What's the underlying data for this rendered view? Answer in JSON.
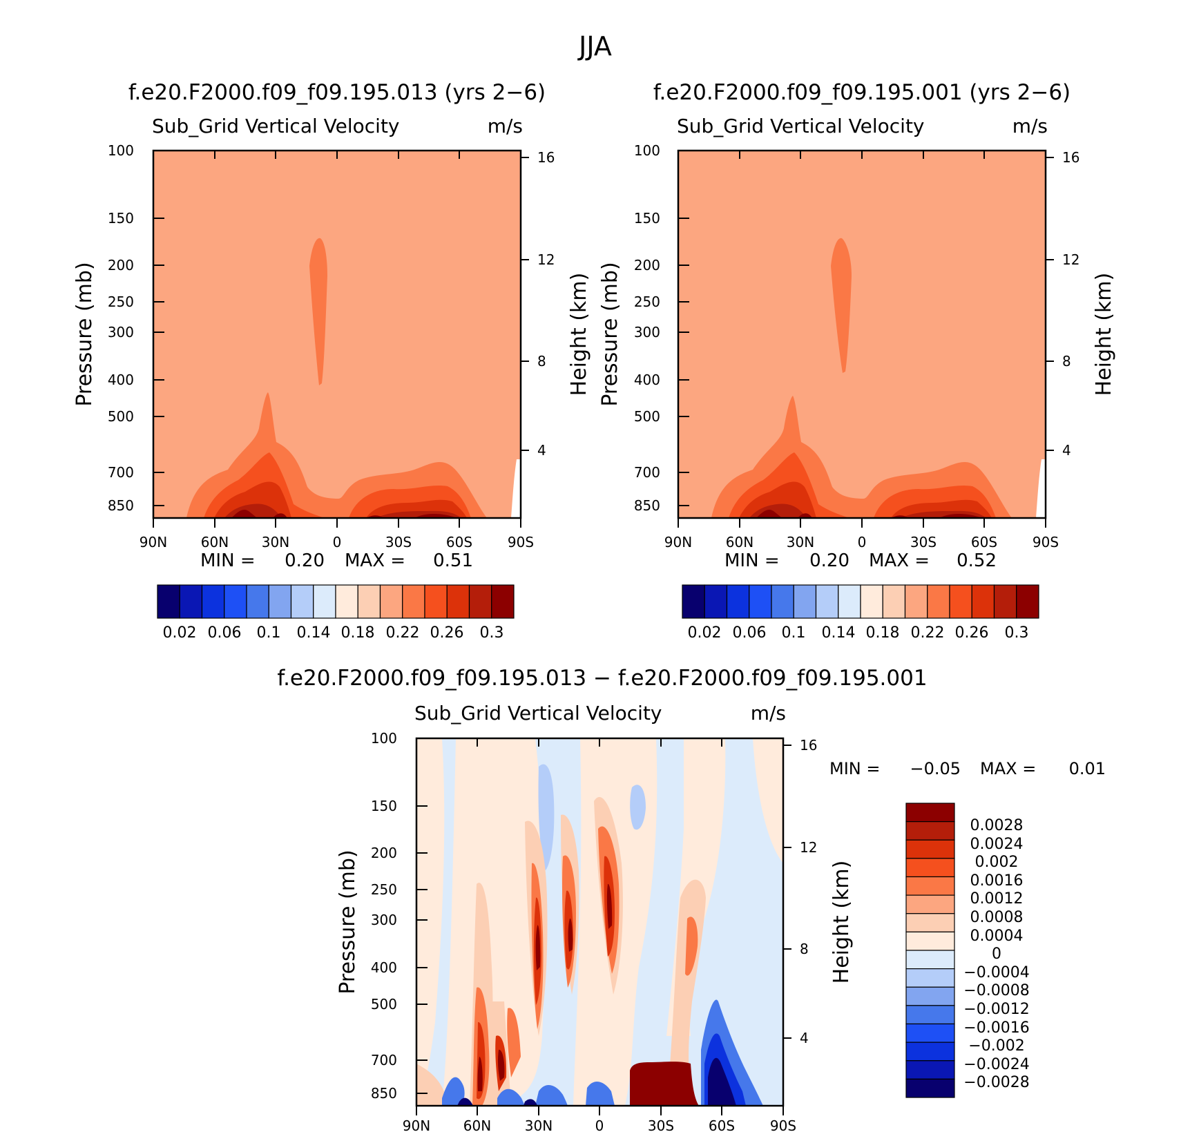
{
  "figure_title": "JJA",
  "colors": {
    "bg_panel": "#FCA680",
    "blues": [
      "#08006E",
      "#0A17B4",
      "#0C32DE",
      "#1E50F5",
      "#4678EB",
      "#82A5F0",
      "#B4CDF9",
      "#DCEBFB"
    ],
    "reds": [
      "#FFEBDC",
      "#FCCFB4",
      "#FCA680",
      "#FA7846",
      "#F5501E",
      "#DC320A",
      "#B41E0A",
      "#8C0000"
    ]
  },
  "chart_data": [
    {
      "type": "contour",
      "title": "f.e20.F2000.f09_f09.195.013 (yrs 2−6)",
      "variable": "Sub_Grid Vertical Velocity",
      "units": "m/s",
      "ylabel": "Pressure (mb)",
      "ylabel_right": "Height (km)",
      "x_ticks": [
        "90N",
        "60N",
        "30N",
        "0",
        "30S",
        "60S",
        "90S"
      ],
      "y_ticks": [
        "100",
        "150",
        "200",
        "250",
        "300",
        "400",
        "500",
        "700",
        "850"
      ],
      "y_right_ticks": [
        "16",
        "12",
        "8",
        "4"
      ],
      "min_label": "MIN =",
      "min_value": "0.20",
      "max_label": "MAX =",
      "max_value": "0.51",
      "colorbar_labels": [
        "0.02",
        "0.06",
        "0.1",
        "0.14",
        "0.18",
        "0.22",
        "0.26",
        "0.3"
      ]
    },
    {
      "type": "contour",
      "title": "f.e20.F2000.f09_f09.195.001 (yrs 2−6)",
      "variable": "Sub_Grid Vertical Velocity",
      "units": "m/s",
      "ylabel": "Pressure (mb)",
      "ylabel_right": "Height (km)",
      "x_ticks": [
        "90N",
        "60N",
        "30N",
        "0",
        "30S",
        "60S",
        "90S"
      ],
      "y_ticks": [
        "100",
        "150",
        "200",
        "250",
        "300",
        "400",
        "500",
        "700",
        "850"
      ],
      "y_right_ticks": [
        "16",
        "12",
        "8",
        "4"
      ],
      "min_label": "MIN =",
      "min_value": "0.20",
      "max_label": "MAX =",
      "max_value": "0.52",
      "colorbar_labels": [
        "0.02",
        "0.06",
        "0.1",
        "0.14",
        "0.18",
        "0.22",
        "0.26",
        "0.3"
      ]
    },
    {
      "type": "contour",
      "title": "f.e20.F2000.f09_f09.195.013 − f.e20.F2000.f09_f09.195.001",
      "variable": "Sub_Grid Vertical Velocity",
      "units": "m/s",
      "ylabel": "Pressure (mb)",
      "ylabel_right": "Height (km)",
      "x_ticks": [
        "90N",
        "60N",
        "30N",
        "0",
        "30S",
        "60S",
        "90S"
      ],
      "y_ticks": [
        "100",
        "150",
        "200",
        "250",
        "300",
        "400",
        "500",
        "700",
        "850"
      ],
      "y_right_ticks": [
        "16",
        "12",
        "8",
        "4"
      ],
      "min_label": "MIN =",
      "min_value": "−0.05",
      "max_label": "MAX =",
      "max_value": "0.01",
      "colorbar_labels": [
        "0.0028",
        "0.0024",
        "0.002",
        "0.0016",
        "0.0012",
        "0.0008",
        "0.0004",
        "0",
        "−0.0004",
        "−0.0008",
        "−0.0012",
        "−0.0016",
        "−0.002",
        "−0.0024",
        "−0.0028"
      ]
    }
  ]
}
